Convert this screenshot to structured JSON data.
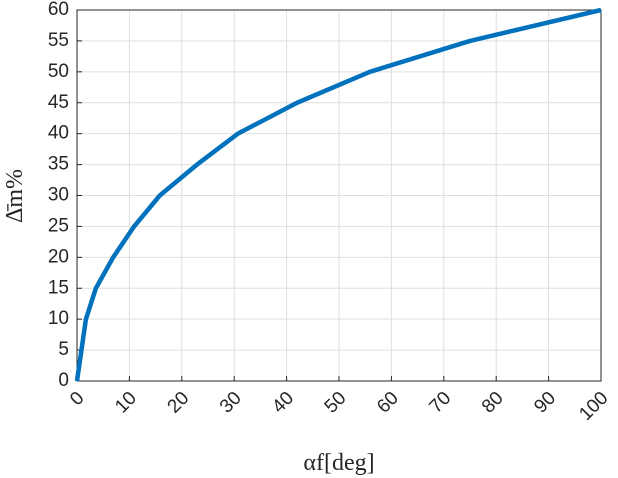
{
  "chart_data": {
    "type": "line",
    "xlabel": "αf[deg]",
    "ylabel": "Δ̄m%",
    "x": [
      0,
      1.7,
      3.6,
      6.9,
      10.9,
      15.8,
      22.9,
      30.7,
      42,
      55.9,
      75,
      100
    ],
    "series": [
      {
        "color": "#0072bd",
        "values": [
          0,
          10,
          15,
          20,
          25,
          30,
          35,
          40,
          45,
          50,
          55,
          60
        ]
      }
    ],
    "xlim": [
      0,
      100
    ],
    "xticks": [
      0,
      10,
      20,
      30,
      40,
      50,
      60,
      70,
      80,
      90,
      100
    ],
    "ylim": [
      0,
      60
    ],
    "yticks": [
      0,
      5,
      10,
      15,
      20,
      25,
      30,
      35,
      40,
      45,
      50,
      55,
      60
    ],
    "grid": true
  }
}
